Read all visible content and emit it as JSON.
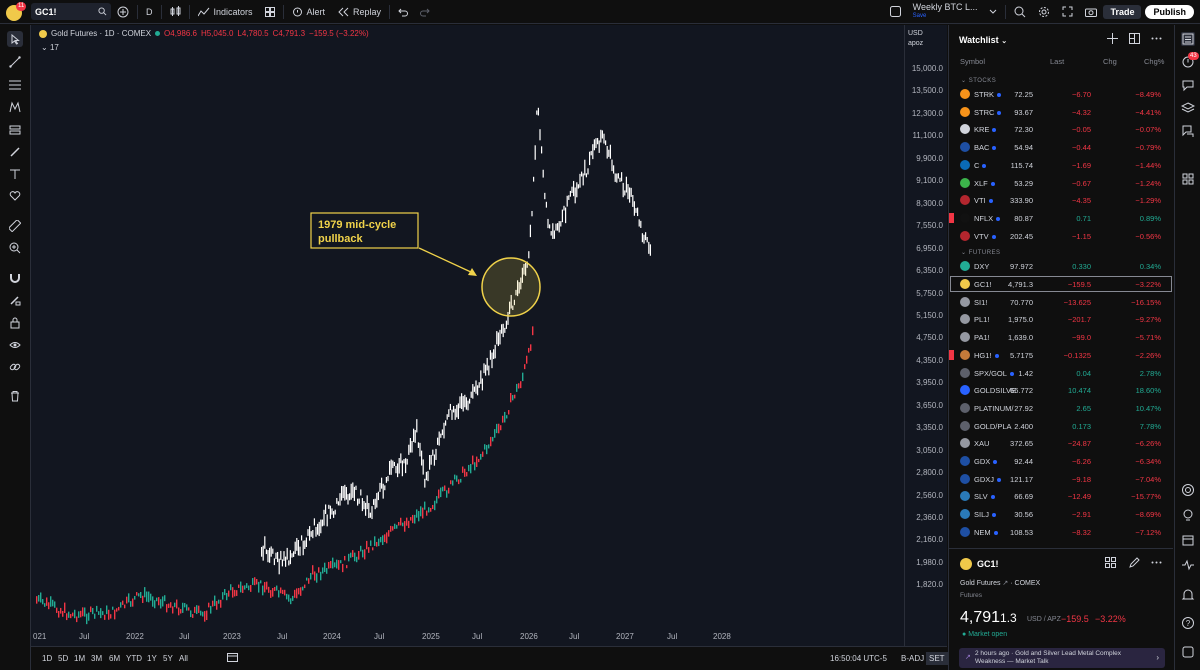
{
  "topbar": {
    "notifications": "11",
    "symbol": "GC1!",
    "interval": "D",
    "indicators_label": "Indicators",
    "alert_label": "Alert",
    "replay_label": "Replay",
    "layout_name": "Weekly BTC L...",
    "layout_status": "Save",
    "trade_label": "Trade",
    "publish_label": "Publish"
  },
  "legend": {
    "name": "Gold Futures · 1D · COMEX",
    "open": "O4,986.6",
    "high": "H5,045.0",
    "low": "L4,780.5",
    "close": "C4,791.3",
    "change": "−159.5 (−3.22%)",
    "indicator_count": "17"
  },
  "price_axis": {
    "currency": "USD",
    "unit": "apoz",
    "labels": [
      "15,000.0",
      "13,500.0",
      "12,300.0",
      "11,100.0",
      "9,900.0",
      "9,100.0",
      "8,300.0",
      "7,550.0",
      "6,950.0",
      "6,350.0",
      "5,750.0",
      "5,150.0",
      "4,750.0",
      "4,350.0",
      "3,950.0",
      "3,650.0",
      "3,350.0",
      "3,050.0",
      "2,800.0",
      "2,560.0",
      "2,360.0",
      "2,160.0",
      "1,980.0",
      "1,820.0"
    ]
  },
  "time_axis": {
    "labels": [
      "021",
      "Jul",
      "2022",
      "Jul",
      "2023",
      "Jul",
      "2024",
      "Jul",
      "2025",
      "Jul",
      "2026",
      "Jul",
      "2027",
      "Jul",
      "2028"
    ]
  },
  "annotation": {
    "text_line1": "1979 mid-cycle",
    "text_line2": "pullback",
    "color": "#f0d24a"
  },
  "bottombar": {
    "ranges": [
      "1D",
      "5D",
      "1M",
      "3M",
      "6M",
      "YTD",
      "1Y",
      "5Y",
      "All"
    ],
    "clock": "16:50:04 UTC-5",
    "adj": "B-ADJ",
    "session": "SET"
  },
  "watchlist": {
    "title": "Watchlist",
    "columns": {
      "symbol": "Symbol",
      "last": "Last",
      "chg": "Chg",
      "chgp": "Chg%"
    },
    "sections": [
      {
        "name": "STOCKS",
        "rows": [
          {
            "sym": "STRK",
            "last": "72.25",
            "chg": "−6.70",
            "pct": "−8.49%",
            "dir": "neg",
            "color": "#f7931a",
            "dot": true
          },
          {
            "sym": "STRC",
            "last": "93.67",
            "chg": "−4.32",
            "pct": "−4.41%",
            "dir": "neg",
            "color": "#f7931a",
            "dot": true
          },
          {
            "sym": "KRE",
            "last": "72.30",
            "chg": "−0.05",
            "pct": "−0.07%",
            "dir": "neg",
            "color": "#d1d4dc",
            "dot": true
          },
          {
            "sym": "BAC",
            "last": "54.94",
            "chg": "−0.44",
            "pct": "−0.79%",
            "dir": "neg",
            "color": "#1e4fa3",
            "dot": true
          },
          {
            "sym": "C",
            "last": "115.74",
            "chg": "−1.69",
            "pct": "−1.44%",
            "dir": "neg",
            "color": "#0a6ab6",
            "dot": true
          },
          {
            "sym": "XLF",
            "last": "53.29",
            "chg": "−0.67",
            "pct": "−1.24%",
            "dir": "neg",
            "color": "#3cb44b",
            "dot": true
          },
          {
            "sym": "VTI",
            "last": "333.90",
            "chg": "−4.35",
            "pct": "−1.29%",
            "dir": "neg",
            "color": "#b3262e",
            "dot": true
          },
          {
            "sym": "NFLX",
            "last": "80.87",
            "chg": "0.71",
            "pct": "0.89%",
            "dir": "pos",
            "color": "#111111",
            "dot": true,
            "flag": true
          },
          {
            "sym": "VTV",
            "last": "202.45",
            "chg": "−1.15",
            "pct": "−0.56%",
            "dir": "neg",
            "color": "#b3262e",
            "dot": true
          }
        ]
      },
      {
        "name": "FUTURES",
        "rows": [
          {
            "sym": "DXY",
            "last": "97.972",
            "chg": "0.330",
            "pct": "0.34%",
            "dir": "pos",
            "color": "#22ab94",
            "dot": false
          },
          {
            "sym": "GC1!",
            "last": "4,791.3",
            "chg": "−159.5",
            "pct": "−3.22%",
            "dir": "neg",
            "color": "#f0c94a",
            "dot": false,
            "selected": true
          },
          {
            "sym": "SI1!",
            "last": "70.770",
            "chg": "−13.625",
            "pct": "−16.15%",
            "dir": "neg",
            "color": "#9598a1",
            "dot": false
          },
          {
            "sym": "PL1!",
            "last": "1,975.0",
            "chg": "−201.7",
            "pct": "−9.27%",
            "dir": "neg",
            "color": "#9598a1",
            "dot": false
          },
          {
            "sym": "PA1!",
            "last": "1,639.0",
            "chg": "−99.0",
            "pct": "−5.71%",
            "dir": "neg",
            "color": "#9598a1",
            "dot": false
          },
          {
            "sym": "HG1!",
            "last": "5.7175",
            "chg": "−0.1325",
            "pct": "−2.26%",
            "dir": "neg",
            "color": "#c47a3a",
            "dot": true,
            "flag": true
          },
          {
            "sym": "SPX/GOL",
            "last": "1.42",
            "chg": "0.04",
            "pct": "2.78%",
            "dir": "pos",
            "color": "#5d606b",
            "dot": true
          },
          {
            "sym": "GOLDSILVE",
            "last": "66.772",
            "chg": "10.474",
            "pct": "18.60%",
            "dir": "pos",
            "color": "#2962ff",
            "dot": false
          },
          {
            "sym": "PLATINUM/",
            "last": "27.92",
            "chg": "2.65",
            "pct": "10.47%",
            "dir": "pos",
            "color": "#5d606b",
            "dot": false
          },
          {
            "sym": "GOLD/PLA",
            "last": "2.400",
            "chg": "0.173",
            "pct": "7.78%",
            "dir": "pos",
            "color": "#5d606b",
            "dot": false
          },
          {
            "sym": "XAU",
            "last": "372.65",
            "chg": "−24.87",
            "pct": "−6.26%",
            "dir": "neg",
            "color": "#9598a1",
            "dot": false
          },
          {
            "sym": "GDX",
            "last": "92.44",
            "chg": "−6.26",
            "pct": "−6.34%",
            "dir": "neg",
            "color": "#1e4fa3",
            "dot": true
          },
          {
            "sym": "GDXJ",
            "last": "121.17",
            "chg": "−9.18",
            "pct": "−7.04%",
            "dir": "neg",
            "color": "#1e4fa3",
            "dot": true
          },
          {
            "sym": "SLV",
            "last": "66.69",
            "chg": "−12.49",
            "pct": "−15.77%",
            "dir": "neg",
            "color": "#2a7ab8",
            "dot": true
          },
          {
            "sym": "SILJ",
            "last": "30.56",
            "chg": "−2.91",
            "pct": "−8.69%",
            "dir": "neg",
            "color": "#2a7ab8",
            "dot": true
          },
          {
            "sym": "NEM",
            "last": "108.53",
            "chg": "−8.32",
            "pct": "−7.12%",
            "dir": "neg",
            "color": "#1e4fa3",
            "dot": true
          }
        ]
      }
    ]
  },
  "detail": {
    "symbol": "GC1!",
    "name": "Gold Futures",
    "exchange": "COMEX",
    "type": "Futures",
    "price_main": "4,791",
    "price_tail": "1.3",
    "unit": "USD / APZ",
    "change": "−159.5",
    "change_pct": "−3.22%",
    "market_status": "Market open",
    "news": "2 hours ago · Gold and Silver Lead Metal Complex Weakness — Market Talk"
  },
  "rightbar": {
    "badge": "43"
  },
  "colors": {
    "up": "#22ab94",
    "down": "#f23645",
    "bg": "#121620",
    "accent": "#2962ff"
  }
}
